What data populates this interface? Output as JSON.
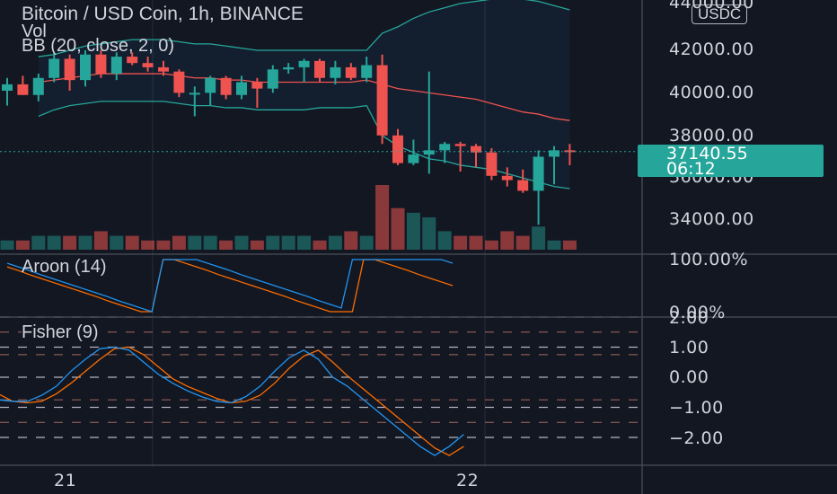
{
  "header": {
    "title": "Bitcoin / USD Coin, 1h, BINANCE",
    "volume_label": "Vol",
    "bb_label": "BB (20, close, 2, 0)",
    "currency": "USDC"
  },
  "price_axis": {
    "ticks": [
      "44000.00",
      "42000.00",
      "40000.00",
      "38000.00",
      "36000.00",
      "34000.00"
    ],
    "last_price": "37140.55",
    "countdown": "06:12"
  },
  "aroon": {
    "label": "Aroon (14)",
    "ticks": [
      "100.00%",
      "0.00%"
    ],
    "colors": {
      "up": "#2196f3",
      "down": "#ff6d00"
    }
  },
  "fisher": {
    "label": "Fisher (9)",
    "ticks": [
      "2.00",
      "1.00",
      "0.00",
      "−1.00",
      "−2.00"
    ],
    "colors": {
      "fisher": "#2196f3",
      "trigger": "#ff6d00"
    }
  },
  "time_axis": {
    "labels": [
      "21",
      "22"
    ]
  },
  "chart_data": [
    {
      "type": "candlestick",
      "title": "Bitcoin / USD Coin, 1h, BINANCE",
      "ylim": [
        33000,
        44500
      ],
      "candles": [
        {
          "o": 40000,
          "h": 40600,
          "l": 39300,
          "c": 40300
        },
        {
          "o": 40300,
          "h": 40700,
          "l": 39800,
          "c": 39800
        },
        {
          "o": 39800,
          "h": 40800,
          "l": 39500,
          "c": 40600
        },
        {
          "o": 40600,
          "h": 41800,
          "l": 40400,
          "c": 41500
        },
        {
          "o": 41500,
          "h": 41700,
          "l": 40000,
          "c": 40500
        },
        {
          "o": 40500,
          "h": 41900,
          "l": 40200,
          "c": 41700
        },
        {
          "o": 41700,
          "h": 41900,
          "l": 40600,
          "c": 40800
        },
        {
          "o": 40800,
          "h": 41800,
          "l": 40500,
          "c": 41600
        },
        {
          "o": 41600,
          "h": 41800,
          "l": 41200,
          "c": 41300
        },
        {
          "o": 41300,
          "h": 41600,
          "l": 40900,
          "c": 41100
        },
        {
          "o": 41100,
          "h": 41400,
          "l": 40700,
          "c": 40900
        },
        {
          "o": 40900,
          "h": 41000,
          "l": 39700,
          "c": 39900
        },
        {
          "o": 39900,
          "h": 40200,
          "l": 38800,
          "c": 39900
        },
        {
          "o": 39900,
          "h": 40700,
          "l": 39300,
          "c": 40600
        },
        {
          "o": 40600,
          "h": 40700,
          "l": 39600,
          "c": 39800
        },
        {
          "o": 39800,
          "h": 40700,
          "l": 39600,
          "c": 40400
        },
        {
          "o": 40400,
          "h": 40600,
          "l": 39200,
          "c": 40100
        },
        {
          "o": 40100,
          "h": 41200,
          "l": 39900,
          "c": 41000
        },
        {
          "o": 41000,
          "h": 41300,
          "l": 40800,
          "c": 41100
        },
        {
          "o": 41100,
          "h": 41500,
          "l": 40400,
          "c": 41400
        },
        {
          "o": 41400,
          "h": 41500,
          "l": 40400,
          "c": 40600
        },
        {
          "o": 40600,
          "h": 41400,
          "l": 40300,
          "c": 41100
        },
        {
          "o": 41100,
          "h": 41300,
          "l": 40500,
          "c": 40600
        },
        {
          "o": 40600,
          "h": 41600,
          "l": 40400,
          "c": 41200
        },
        {
          "o": 41200,
          "h": 41700,
          "l": 37500,
          "c": 37900
        },
        {
          "o": 37900,
          "h": 38200,
          "l": 36500,
          "c": 36600
        },
        {
          "o": 36600,
          "h": 37700,
          "l": 36500,
          "c": 37000
        },
        {
          "o": 37000,
          "h": 40900,
          "l": 36100,
          "c": 37200
        },
        {
          "o": 37200,
          "h": 37600,
          "l": 36600,
          "c": 37500
        },
        {
          "o": 37500,
          "h": 37600,
          "l": 36200,
          "c": 37400
        },
        {
          "o": 37400,
          "h": 37500,
          "l": 36400,
          "c": 37100
        },
        {
          "o": 37100,
          "h": 37300,
          "l": 35800,
          "c": 36000
        },
        {
          "o": 36000,
          "h": 36400,
          "l": 35500,
          "c": 35800
        },
        {
          "o": 35800,
          "h": 36300,
          "l": 35200,
          "c": 35300
        },
        {
          "o": 35300,
          "h": 37200,
          "l": 33700,
          "c": 36900
        },
        {
          "o": 36900,
          "h": 37400,
          "l": 35600,
          "c": 37200
        },
        {
          "o": 37200,
          "h": 37500,
          "l": 36500,
          "c": 37140.55
        }
      ],
      "last_price": 37140.55
    },
    {
      "type": "bar",
      "title": "Vol",
      "values": [
        2,
        2,
        3,
        3,
        3,
        3,
        4,
        3,
        3,
        2,
        2,
        3,
        3,
        3,
        2,
        3,
        2,
        3,
        3,
        3,
        2,
        3,
        4,
        3,
        14,
        9,
        8,
        7,
        4,
        3,
        3,
        2,
        4,
        3,
        5,
        2,
        2
      ]
    },
    {
      "type": "line",
      "title": "BB (20, close, 2, 0)",
      "series": [
        {
          "name": "Upper",
          "values": [
            null,
            null,
            41600,
            41700,
            41900,
            42100,
            42200,
            42300,
            42400,
            42400,
            42400,
            42300,
            42200,
            42200,
            42100,
            42000,
            41900,
            41900,
            41900,
            41900,
            41900,
            41900,
            41900,
            41900,
            42700,
            43000,
            43400,
            43700,
            43900,
            44100,
            44200,
            44300,
            44300,
            44300,
            44200,
            44000,
            43800
          ]
        },
        {
          "name": "Basis",
          "values": [
            null,
            null,
            40400,
            40500,
            40600,
            40700,
            40800,
            40800,
            40800,
            40800,
            40800,
            40700,
            40600,
            40600,
            40500,
            40500,
            40400,
            40400,
            40400,
            40400,
            40400,
            40400,
            40400,
            40500,
            40300,
            40100,
            40000,
            39900,
            39800,
            39700,
            39600,
            39400,
            39200,
            39000,
            38900,
            38700,
            38600
          ]
        },
        {
          "name": "Lower",
          "values": [
            null,
            null,
            38800,
            39100,
            39300,
            39400,
            39500,
            39500,
            39500,
            39500,
            39500,
            39400,
            39300,
            39300,
            39200,
            39200,
            39100,
            39100,
            39100,
            39100,
            39200,
            39200,
            39200,
            39300,
            37900,
            37400,
            37100,
            36800,
            36700,
            36500,
            36400,
            36300,
            36100,
            35900,
            35700,
            35500,
            35400
          ]
        }
      ]
    },
    {
      "type": "line",
      "title": "Aroon (14)",
      "ylim": [
        0,
        100
      ],
      "series": [
        {
          "name": "Up",
          "values": [
            93,
            86,
            79,
            71,
            64,
            57,
            50,
            43,
            36,
            29,
            21,
            14,
            7,
            0,
            100,
            100,
            100,
            100,
            93,
            86,
            79,
            71,
            64,
            57,
            50,
            43,
            36,
            29,
            21,
            14,
            7,
            100,
            100,
            100,
            100,
            100,
            100,
            100,
            100,
            100,
            93
          ]
        },
        {
          "name": "Down",
          "values": [
            86,
            79,
            71,
            64,
            57,
            50,
            43,
            36,
            29,
            21,
            14,
            7,
            0,
            0,
            100,
            100,
            93,
            86,
            79,
            71,
            64,
            57,
            50,
            43,
            36,
            29,
            21,
            14,
            7,
            0,
            0,
            0,
            100,
            100,
            93,
            86,
            79,
            71,
            64,
            57,
            50
          ]
        }
      ]
    },
    {
      "type": "line",
      "title": "Fisher (9)",
      "ylim": [
        -2.4,
        2.1
      ],
      "series": [
        {
          "name": "Fisher",
          "values": [
            -0.75,
            -0.8,
            -0.8,
            -0.6,
            -0.3,
            0.2,
            0.6,
            0.95,
            1.0,
            0.9,
            0.5,
            0.1,
            -0.2,
            -0.45,
            -0.65,
            -0.8,
            -0.85,
            -0.65,
            -0.3,
            0.2,
            0.65,
            0.9,
            0.6,
            0.0,
            -0.3,
            -0.7,
            -1.1,
            -1.5,
            -1.9,
            -2.3,
            -2.6,
            -2.3,
            -1.9
          ]
        },
        {
          "name": "Trigger",
          "values": [
            -0.55,
            -0.8,
            -0.85,
            -0.8,
            -0.55,
            -0.2,
            0.2,
            0.6,
            0.95,
            1.0,
            0.75,
            0.35,
            -0.05,
            -0.3,
            -0.5,
            -0.7,
            -0.85,
            -0.8,
            -0.6,
            -0.2,
            0.3,
            0.7,
            0.9,
            0.5,
            0.05,
            -0.35,
            -0.75,
            -1.15,
            -1.55,
            -1.95,
            -2.35,
            -2.6,
            -2.3
          ]
        }
      ]
    }
  ]
}
